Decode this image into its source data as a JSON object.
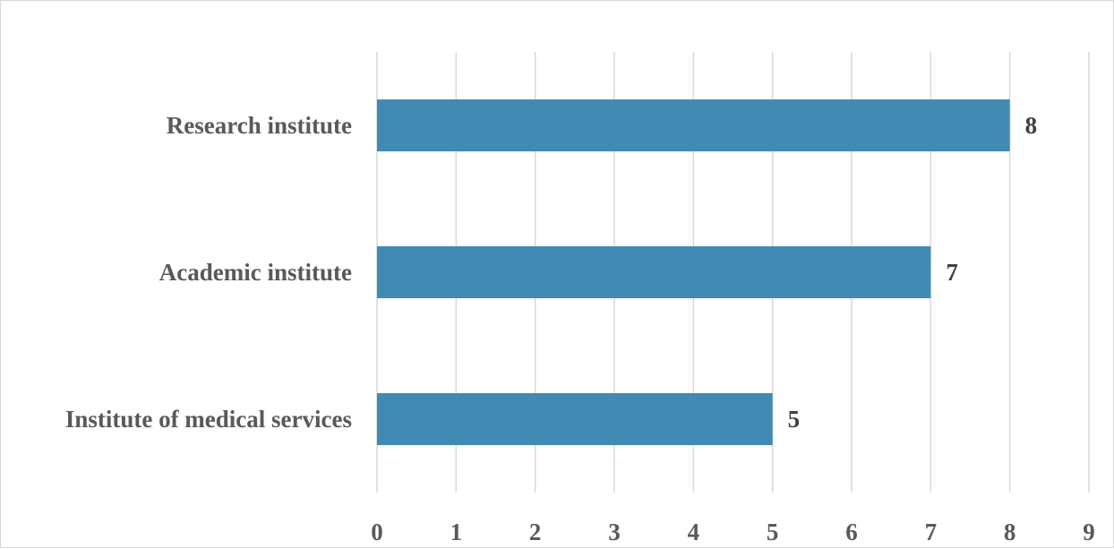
{
  "chart_data": {
    "type": "bar",
    "orientation": "horizontal",
    "title": "",
    "xlabel": "",
    "ylabel": "",
    "categories": [
      "Institute of medical services",
      "Academic institute",
      "Research institute"
    ],
    "values": [
      5,
      7,
      8
    ],
    "data_labels": [
      "5",
      "7",
      "8"
    ],
    "x_ticks": [
      "0",
      "1",
      "2",
      "3",
      "4",
      "5",
      "6",
      "7",
      "8",
      "9"
    ],
    "xlim": [
      0,
      9
    ],
    "grid": "vertical",
    "legend": "none",
    "bar_color": "#418AB3",
    "gridline_color": "#D9D9D9",
    "label_color": "#595959"
  }
}
